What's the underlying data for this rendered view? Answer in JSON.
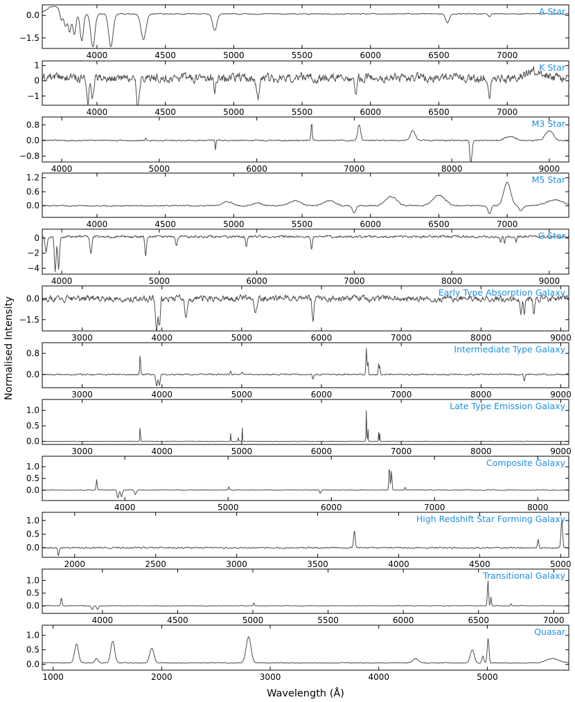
{
  "figure": {
    "ylabel": "Normalised Intensity",
    "xlabel": "Wavelength (Å)",
    "line_color": "#4a4a4a",
    "label_color": "#1f8fe0"
  },
  "chart_data": [
    {
      "type": "line",
      "label": "A Star",
      "xlim": [
        3600,
        7450
      ],
      "ylim": [
        -2.2,
        0.7
      ],
      "xticks": [
        4000,
        4500,
        5000,
        5500,
        6000,
        6500,
        7000
      ],
      "yticks": [
        0.0,
        -1.5
      ],
      "ytick_labels": [
        "0.0",
        "−1.5"
      ],
      "baseline": 0.1,
      "noise": 0.05,
      "noise_seed": 1,
      "features": [
        [
          3680,
          0.5,
          45
        ],
        [
          3740,
          -0.6,
          10
        ],
        [
          3770,
          -0.9,
          10
        ],
        [
          3800,
          -1.2,
          10
        ],
        [
          3835,
          -1.4,
          11
        ],
        [
          3889,
          -1.8,
          12
        ],
        [
          3970,
          -2.2,
          15
        ],
        [
          4102,
          -2.2,
          16
        ],
        [
          4340,
          -1.7,
          18
        ],
        [
          4861,
          -1.1,
          16
        ],
        [
          6563,
          -0.6,
          14
        ],
        [
          6870,
          -0.2,
          8
        ]
      ]
    },
    {
      "type": "line",
      "label": "K Star",
      "xlim": [
        3600,
        7450
      ],
      "ylim": [
        -1.6,
        1.3
      ],
      "xticks": [
        4000,
        4500,
        5000,
        5500,
        6000,
        6500,
        7000
      ],
      "yticks": [
        1,
        0,
        -1
      ],
      "ytick_labels": [
        "1",
        "0",
        "−1"
      ],
      "baseline": 0.2,
      "noise": 0.45,
      "noise_seed": 2,
      "features": [
        [
          3933,
          -1.6,
          8
        ],
        [
          3968,
          -1.4,
          8
        ],
        [
          4300,
          -1.9,
          10
        ],
        [
          4861,
          -0.8,
          8
        ],
        [
          5175,
          -1.5,
          10
        ],
        [
          5893,
          -1.1,
          8
        ],
        [
          6870,
          -1.4,
          8
        ],
        [
          7200,
          0.4,
          60
        ]
      ]
    },
    {
      "type": "line",
      "label": "M3 Star",
      "xlim": [
        3800,
        9200
      ],
      "ylim": [
        -1.1,
        1.2
      ],
      "xticks": [
        4000,
        5000,
        6000,
        7000,
        8000,
        9000
      ],
      "yticks": [
        0.8,
        0.0,
        -0.8
      ],
      "ytick_labels": [
        "0.8",
        "0.0",
        "−0.8"
      ],
      "baseline": 0.0,
      "noise": 0.05,
      "noise_seed": 3,
      "features": [
        [
          4861,
          0.15,
          6
        ],
        [
          5577,
          -0.5,
          4
        ],
        [
          6563,
          0.9,
          6
        ],
        [
          7050,
          0.8,
          15
        ],
        [
          7600,
          0.5,
          25
        ],
        [
          8200,
          -0.9,
          10
        ],
        [
          8190,
          -0.6,
          6
        ],
        [
          8600,
          0.2,
          50
        ],
        [
          9000,
          0.5,
          40
        ]
      ]
    },
    {
      "type": "line",
      "label": "M5 Star",
      "xlim": [
        3600,
        7450
      ],
      "ylim": [
        -0.5,
        1.4
      ],
      "xticks": [
        4000,
        4500,
        5000,
        5500,
        6000,
        6500,
        7000
      ],
      "yticks": [
        1.2,
        0.6,
        0.0
      ],
      "ytick_labels": [
        "1.2",
        "0.6",
        "0.0"
      ],
      "baseline": 0.0,
      "noise": 0.04,
      "noise_seed": 4,
      "features": [
        [
          4950,
          0.18,
          35
        ],
        [
          5170,
          0.12,
          30
        ],
        [
          5450,
          0.22,
          40
        ],
        [
          5700,
          0.22,
          40
        ],
        [
          5880,
          -0.3,
          12
        ],
        [
          6150,
          0.4,
          40
        ],
        [
          6500,
          0.45,
          45
        ],
        [
          6870,
          -0.35,
          12
        ],
        [
          7000,
          1.0,
          25
        ],
        [
          7100,
          -0.2,
          15
        ],
        [
          7350,
          0.25,
          60
        ]
      ]
    },
    {
      "type": "line",
      "label": "G Star",
      "xlim": [
        3800,
        9200
      ],
      "ylim": [
        -4.8,
        1.2
      ],
      "xticks": [
        4000,
        5000,
        6000,
        7000,
        8000,
        9000
      ],
      "yticks": [
        0,
        -2,
        -4
      ],
      "ytick_labels": [
        "0",
        "−2",
        "−4"
      ],
      "baseline": 0.2,
      "noise": 0.25,
      "noise_seed": 5,
      "features": [
        [
          3840,
          -2.2,
          10
        ],
        [
          3933,
          -4.6,
          9
        ],
        [
          3968,
          -4.4,
          9
        ],
        [
          4300,
          -2.2,
          10
        ],
        [
          4861,
          -2.6,
          8
        ],
        [
          5175,
          -1.2,
          10
        ],
        [
          5893,
          -1.3,
          8
        ],
        [
          6563,
          -1.8,
          8
        ],
        [
          8500,
          -0.8,
          6
        ],
        [
          8542,
          -0.9,
          6
        ],
        [
          8662,
          -0.8,
          6
        ]
      ]
    },
    {
      "type": "line",
      "label": "Early Type Absorption Galaxy",
      "xlim": [
        2500,
        9100
      ],
      "ylim": [
        -2.3,
        0.9
      ],
      "xticks": [
        3000,
        4000,
        5000,
        6000,
        7000,
        8000,
        9000
      ],
      "yticks": [
        0.0,
        -1.5
      ],
      "ytick_labels": [
        "0.0",
        "−1.5"
      ],
      "baseline": 0.0,
      "noise": 0.35,
      "noise_seed": 6,
      "features": [
        [
          3933,
          -2.3,
          12
        ],
        [
          3968,
          -2.0,
          12
        ],
        [
          4300,
          -1.2,
          15
        ],
        [
          5175,
          -1.0,
          15
        ],
        [
          5893,
          -1.6,
          12
        ],
        [
          8500,
          -1.2,
          10
        ],
        [
          8542,
          -1.3,
          10
        ],
        [
          8662,
          -1.0,
          10
        ]
      ]
    },
    {
      "type": "line",
      "label": "Intermediate Type Galaxy",
      "xlim": [
        2500,
        9100
      ],
      "ylim": [
        -0.5,
        1.2
      ],
      "xticks": [
        3000,
        4000,
        5000,
        6000,
        7000,
        8000,
        9000
      ],
      "yticks": [
        0.8,
        0.0
      ],
      "ytick_labels": [
        "0.8",
        "0.0"
      ],
      "baseline": 0.0,
      "noise": 0.04,
      "noise_seed": 7,
      "features": [
        [
          3727,
          0.75,
          6
        ],
        [
          3933,
          -0.45,
          10
        ],
        [
          3968,
          -0.4,
          10
        ],
        [
          4861,
          0.15,
          6
        ],
        [
          5007,
          0.1,
          6
        ],
        [
          5893,
          -0.2,
          8
        ],
        [
          6563,
          1.0,
          6
        ],
        [
          6583,
          0.5,
          5
        ],
        [
          6716,
          0.4,
          5
        ],
        [
          6731,
          0.3,
          5
        ],
        [
          8542,
          -0.25,
          8
        ]
      ]
    },
    {
      "type": "line",
      "label": "Late Type Emission Galaxy",
      "xlim": [
        2500,
        9100
      ],
      "ylim": [
        -0.1,
        1.35
      ],
      "xticks": [
        3000,
        4000,
        5000,
        6000,
        7000,
        8000,
        9000
      ],
      "yticks": [
        1.0,
        0.5,
        0.0
      ],
      "ytick_labels": [
        "1.0",
        "0.5",
        "0.0"
      ],
      "baseline": 0.0,
      "noise": 0.01,
      "noise_seed": 8,
      "features": [
        [
          3727,
          0.5,
          4
        ],
        [
          4861,
          0.25,
          3
        ],
        [
          4959,
          0.15,
          3
        ],
        [
          5007,
          0.45,
          3
        ],
        [
          6563,
          1.0,
          4
        ],
        [
          6583,
          0.45,
          3
        ],
        [
          6716,
          0.3,
          3
        ],
        [
          6731,
          0.25,
          3
        ]
      ]
    },
    {
      "type": "line",
      "label": "Composite Galaxy",
      "xlim": [
        3200,
        8300
      ],
      "ylim": [
        -0.45,
        1.45
      ],
      "xticks": [
        4000,
        5000,
        6000,
        7000,
        8000
      ],
      "yticks": [
        1.0,
        0.5,
        0.0
      ],
      "ytick_labels": [
        "1.0",
        "0.5",
        "0.0"
      ],
      "baseline": 0.0,
      "noise": 0.02,
      "noise_seed": 9,
      "features": [
        [
          3727,
          0.45,
          5
        ],
        [
          3933,
          -0.35,
          8
        ],
        [
          3968,
          -0.3,
          8
        ],
        [
          4102,
          -0.2,
          8
        ],
        [
          5007,
          0.15,
          5
        ],
        [
          5893,
          -0.15,
          6
        ],
        [
          6563,
          1.0,
          5
        ],
        [
          6583,
          0.8,
          5
        ],
        [
          6716,
          0.15,
          4
        ]
      ]
    },
    {
      "type": "line",
      "label": "High Redshift Star Forming Galaxy",
      "xlim": [
        1800,
        5050
      ],
      "ylim": [
        -0.35,
        1.3
      ],
      "xticks": [
        2000,
        2500,
        3000,
        3500,
        4000,
        4500,
        5000
      ],
      "yticks": [
        1.0,
        0.5,
        0.0
      ],
      "ytick_labels": [
        "1.0",
        "0.5",
        "0.0"
      ],
      "baseline": 0.0,
      "noise": 0.04,
      "noise_seed": 10,
      "features": [
        [
          1900,
          -0.3,
          4
        ],
        [
          3727,
          0.65,
          5
        ],
        [
          4861,
          0.3,
          4
        ],
        [
          5007,
          1.0,
          5
        ]
      ]
    },
    {
      "type": "line",
      "label": "Transitional Galaxy",
      "xlim": [
        3600,
        7100
      ],
      "ylim": [
        -0.3,
        1.45
      ],
      "xticks": [
        4000,
        4500,
        5000,
        5500,
        6000,
        6500,
        7000
      ],
      "yticks": [
        1.0,
        0.5,
        0.0
      ],
      "ytick_labels": [
        "1.0",
        "0.5",
        "0.0"
      ],
      "baseline": 0.0,
      "noise": 0.02,
      "noise_seed": 11,
      "features": [
        [
          3727,
          0.3,
          4
        ],
        [
          3933,
          -0.15,
          6
        ],
        [
          3968,
          -0.15,
          6
        ],
        [
          5007,
          0.12,
          3
        ],
        [
          6563,
          1.0,
          4
        ],
        [
          6583,
          0.35,
          3
        ],
        [
          6716,
          0.08,
          3
        ]
      ]
    },
    {
      "type": "line",
      "label": "Quasar",
      "xlim": [
        900,
        5750
      ],
      "ylim": [
        -0.2,
        1.35
      ],
      "xticks": [
        1000,
        2000,
        3000,
        4000,
        5000
      ],
      "yticks": [
        1.0,
        0.5,
        0.0
      ],
      "ytick_labels": [
        "1.0",
        "0.5",
        "0.0"
      ],
      "baseline": 0.05,
      "noise": 0.02,
      "noise_seed": 12,
      "features": [
        [
          1216,
          0.65,
          18
        ],
        [
          1400,
          0.15,
          15
        ],
        [
          1549,
          0.75,
          18
        ],
        [
          1909,
          0.5,
          20
        ],
        [
          2800,
          0.9,
          22
        ],
        [
          4340,
          0.15,
          25
        ],
        [
          4861,
          0.45,
          18
        ],
        [
          4959,
          0.25,
          8
        ],
        [
          5007,
          0.85,
          8
        ],
        [
          5600,
          0.15,
          60
        ]
      ]
    }
  ]
}
